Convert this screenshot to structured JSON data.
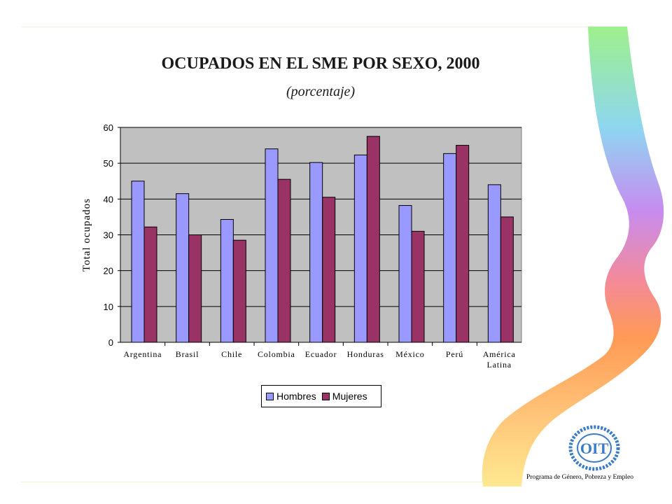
{
  "slide": {
    "title": "OCUPADOS EN EL SME POR SEXO, 2000",
    "subtitle": "(porcentaje)",
    "footer": "Programa de Género, Pobreza y Empleo",
    "logo_text": "OIT"
  },
  "colors": {
    "hombres": "#9999ff",
    "mujeres": "#993366",
    "plot_bg": "#c0c0c0"
  },
  "chart_data": {
    "type": "bar",
    "ylabel": "Total ocupados",
    "ylim": [
      0,
      60
    ],
    "yticks": [
      "0",
      "10",
      "20",
      "30",
      "40",
      "50",
      "60"
    ],
    "grid": true,
    "legend_position": "bottom",
    "categories": [
      "Argentina",
      "Brasil",
      "Chile",
      "Colombia",
      "Ecuador",
      "Honduras",
      "México",
      "Perú",
      "América Latina"
    ],
    "category_labels": [
      [
        "Argentina"
      ],
      [
        "Brasil"
      ],
      [
        "Chile"
      ],
      [
        "Colombia"
      ],
      [
        "Ecuador"
      ],
      [
        "Honduras"
      ],
      [
        "México"
      ],
      [
        "Perú"
      ],
      [
        "América",
        "Latina"
      ]
    ],
    "series": [
      {
        "name": "Hombres",
        "values": [
          45,
          41.5,
          34.3,
          54,
          50.2,
          52.3,
          38.2,
          52.7,
          44
        ]
      },
      {
        "name": "Mujeres",
        "values": [
          32.2,
          30,
          28.5,
          45.5,
          40.5,
          57.5,
          31,
          55,
          35
        ]
      }
    ]
  }
}
